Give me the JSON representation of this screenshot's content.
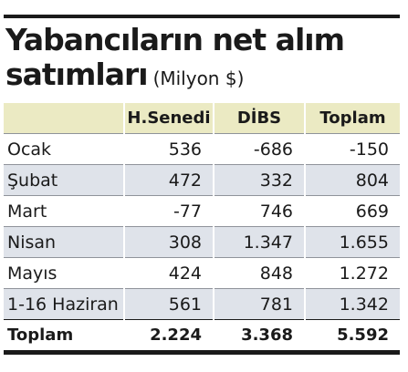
{
  "title": {
    "line1": "Yabancıların net alım",
    "line2": "satımları",
    "unit": "(Milyon $)"
  },
  "table": {
    "headers": [
      "",
      "H.Senedi",
      "DİBS",
      "Toplam"
    ],
    "rows": [
      [
        "Ocak",
        "536",
        "-686",
        "-150"
      ],
      [
        "Şubat",
        "472",
        "332",
        "804"
      ],
      [
        "Mart",
        "-77",
        "746",
        "669"
      ],
      [
        "Nisan",
        "308",
        "1.347",
        "1.655"
      ],
      [
        "Mayıs",
        "424",
        "848",
        "1.272"
      ],
      [
        "1-16 Haziran",
        "561",
        "781",
        "1.342"
      ]
    ],
    "total": [
      "Toplam",
      "2.224",
      "3.368",
      "5.592"
    ]
  },
  "colors": {
    "header_bg": "#ebeac3",
    "alt_row_bg": "#dfe3ea",
    "rule": "#1a1a1a"
  }
}
